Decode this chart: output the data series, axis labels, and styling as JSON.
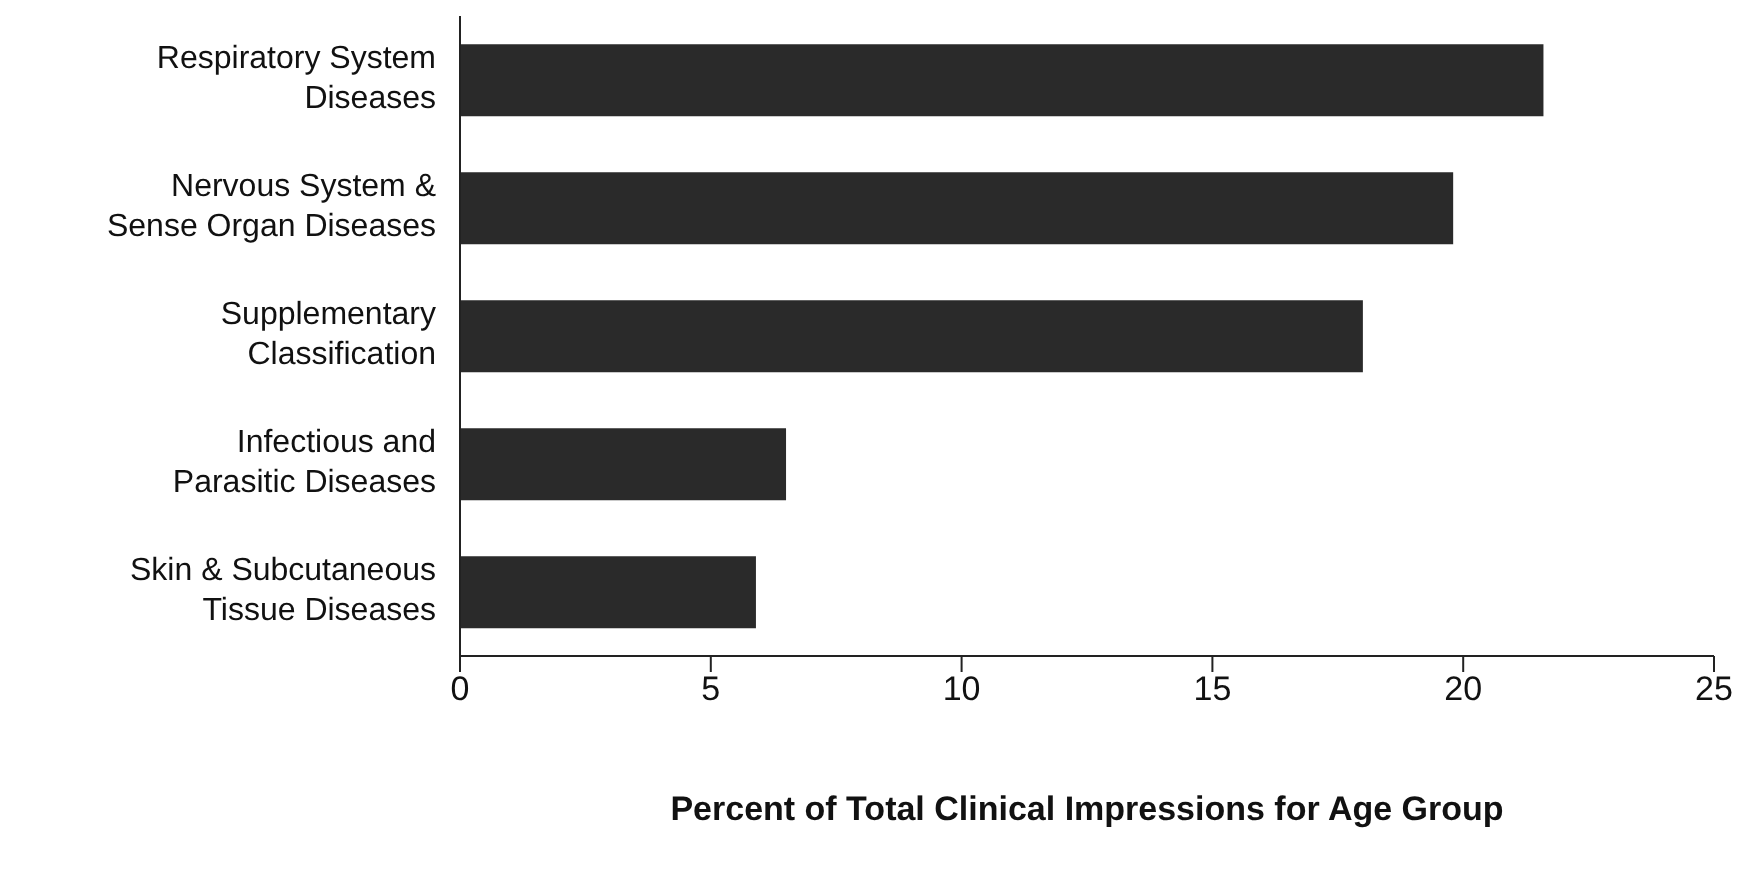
{
  "chart_data": {
    "type": "bar",
    "orientation": "horizontal",
    "xlabel": "Percent of  Total Clinical Impressions for Age Group",
    "categories": [
      "Respiratory System\nDiseases",
      "Nervous System &\nSense Organ Diseases",
      "Supplementary\nClassification",
      "Infectious and\nParasitic  Diseases",
      "Skin & Subcutaneous\nTissue Diseases"
    ],
    "values": [
      21.6,
      19.8,
      18.0,
      6.5,
      5.9
    ],
    "color": "#2a2a2a",
    "xlim": [
      0,
      25
    ],
    "xticks": [
      0,
      5,
      10,
      15,
      20,
      25
    ],
    "grid": false,
    "legend": false
  }
}
